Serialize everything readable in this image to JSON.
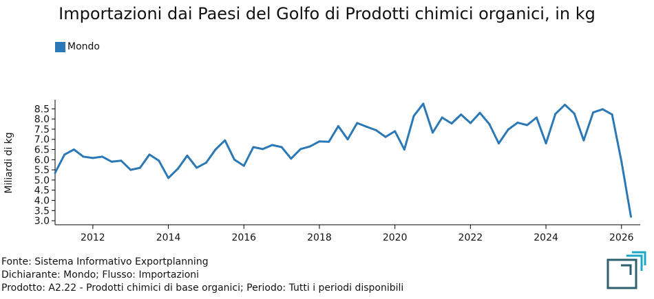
{
  "chart_data": {
    "type": "line",
    "title": "Importazioni dai Paesi del Golfo di Prodotti chimici organici, in kg",
    "ylabel": "Miliardi di kg",
    "xlabel": "",
    "ylim": [
      2.8,
      8.95
    ],
    "xlim": [
      "2011-01-01",
      "2026-06-30"
    ],
    "y_ticks": [
      "3.0",
      "3.5",
      "4.0",
      "4.5",
      "5.0",
      "5.5",
      "6.0",
      "6.5",
      "7.0",
      "7.5",
      "8.0",
      "8.5"
    ],
    "x_ticks": [
      "2012",
      "2014",
      "2016",
      "2018",
      "2020",
      "2022",
      "2024",
      "2026"
    ],
    "legend": "top-left",
    "grid": false,
    "series": [
      {
        "name": "Mondo",
        "color": "#2a78b5",
        "x": [
          "2011-Q1",
          "2011-Q2",
          "2011-Q3",
          "2011-Q4",
          "2012-Q1",
          "2012-Q2",
          "2012-Q3",
          "2012-Q4",
          "2013-Q1",
          "2013-Q2",
          "2013-Q3",
          "2013-Q4",
          "2014-Q1",
          "2014-Q2",
          "2014-Q3",
          "2014-Q4",
          "2015-Q1",
          "2015-Q2",
          "2015-Q3",
          "2015-Q4",
          "2016-Q1",
          "2016-Q2",
          "2016-Q3",
          "2016-Q4",
          "2017-Q1",
          "2017-Q2",
          "2017-Q3",
          "2017-Q4",
          "2018-Q1",
          "2018-Q2",
          "2018-Q3",
          "2018-Q4",
          "2019-Q1",
          "2019-Q2",
          "2019-Q3",
          "2019-Q4",
          "2020-Q1",
          "2020-Q2",
          "2020-Q3",
          "2020-Q4",
          "2021-Q1",
          "2021-Q2",
          "2021-Q3",
          "2021-Q4",
          "2022-Q1",
          "2022-Q2",
          "2022-Q3",
          "2022-Q4",
          "2023-Q1",
          "2023-Q2",
          "2023-Q3",
          "2023-Q4",
          "2024-Q1",
          "2024-Q2",
          "2024-Q3",
          "2024-Q4",
          "2025-Q1",
          "2025-Q2",
          "2025-Q3",
          "2025-Q4",
          "2026-Q1",
          "2026-Q2"
        ],
        "values": [
          5.35,
          6.25,
          6.5,
          6.15,
          6.08,
          6.15,
          5.9,
          5.95,
          5.5,
          5.6,
          6.25,
          5.95,
          5.1,
          5.55,
          6.2,
          5.6,
          5.85,
          6.5,
          6.95,
          6.0,
          5.7,
          6.62,
          6.52,
          6.72,
          6.62,
          6.05,
          6.52,
          6.65,
          6.9,
          6.88,
          7.65,
          7.0,
          7.8,
          7.62,
          7.45,
          7.12,
          7.4,
          6.5,
          8.15,
          8.75,
          7.33,
          8.07,
          7.78,
          8.22,
          7.8,
          8.3,
          7.75,
          6.8,
          7.48,
          7.82,
          7.7,
          8.07,
          6.8,
          8.25,
          8.7,
          8.27,
          6.95,
          8.32,
          8.48,
          8.22,
          5.9,
          3.2
        ]
      }
    ]
  },
  "footer": {
    "line1": "Fonte: Sistema Informativo Exportplanning",
    "line2": "Dichiarante: Mondo; Flusso: Importazioni",
    "line3": "Prodotto: A2.22 - Prodotti chimici di base organici; Periodo: Tutti i periodi disponibili"
  },
  "colors": {
    "series": "#2a78b5",
    "logo_dark": "#2e5f6e",
    "logo_accent": "#1aa7c8"
  }
}
